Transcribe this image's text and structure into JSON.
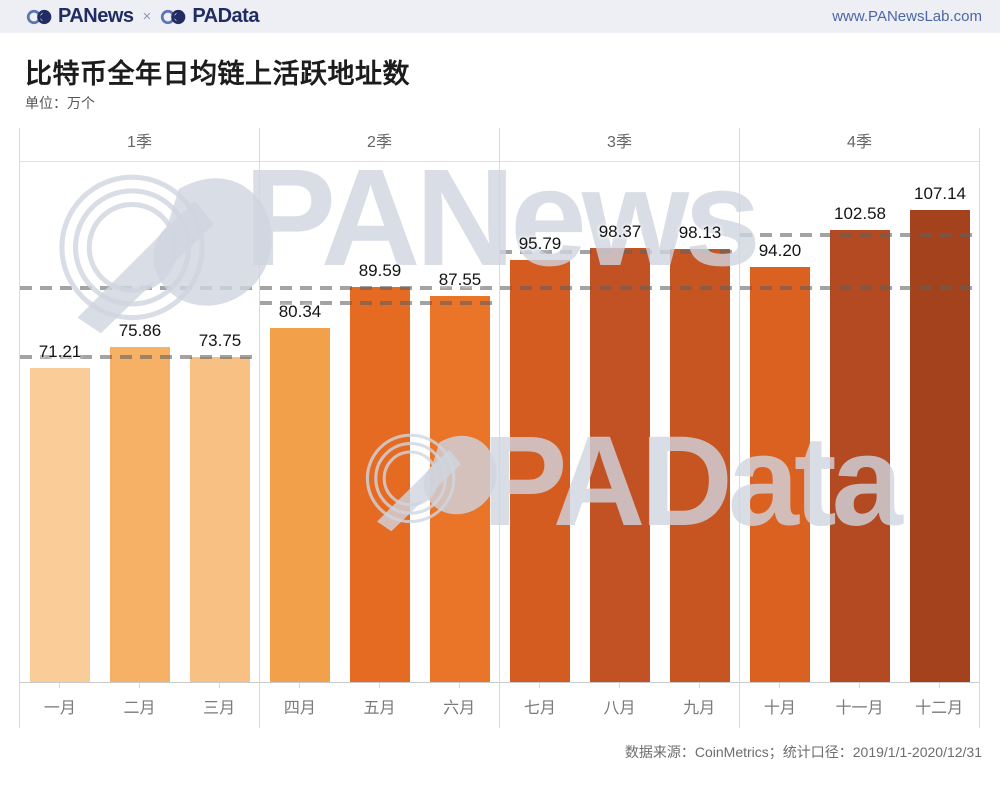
{
  "header": {
    "brand_left": "PANews",
    "brand_separator": "×",
    "brand_right": "PAData",
    "url": "www.PANewsLab.com"
  },
  "title": "比特币全年日均链上活跃地址数",
  "unit_label": "单位：万个",
  "watermarks": {
    "first": "PANews",
    "second": "PAData"
  },
  "footer": {
    "source": "数据来源：CoinMetrics；统计口径：2019/1/1-2020/12/31"
  },
  "chart_data": {
    "type": "bar",
    "title": "比特币全年日均链上活跃地址数",
    "ylabel": "万个",
    "xlabel": "",
    "ylim": [
      0,
      118
    ],
    "grid": false,
    "legend": "none",
    "categories": [
      "一月",
      "二月",
      "三月",
      "四月",
      "五月",
      "六月",
      "七月",
      "八月",
      "九月",
      "十月",
      "十一月",
      "十二月"
    ],
    "values": [
      71.21,
      75.86,
      73.75,
      80.34,
      89.59,
      87.55,
      95.79,
      98.37,
      98.13,
      94.2,
      102.58,
      107.14
    ],
    "value_labels": [
      "71.21",
      "75.86",
      "73.75",
      "80.34",
      "89.59",
      "87.55",
      "95.79",
      "98.37",
      "98.13",
      "94.20",
      "102.58",
      "107.14"
    ],
    "bar_colors": [
      "#FACC98",
      "#F6B166",
      "#F8C082",
      "#F3A04B",
      "#E56A22",
      "#EA7428",
      "#D55C20",
      "#C25123",
      "#C65522",
      "#DA611F",
      "#B34A21",
      "#A3421C"
    ],
    "quarters": [
      {
        "label": "1季",
        "avg": 73.61
      },
      {
        "label": "2季",
        "avg": 85.83
      },
      {
        "label": "3季",
        "avg": 97.43
      },
      {
        "label": "4季",
        "avg": 101.31
      }
    ],
    "annual_avg": 89.54,
    "reference_line_style": "dashed-gray"
  }
}
